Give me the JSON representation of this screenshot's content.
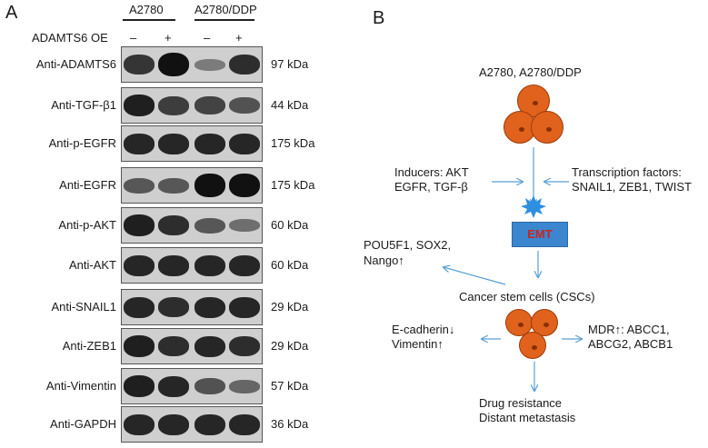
{
  "panel_a": {
    "letter": "A",
    "cell_lines": [
      "A2780",
      "A2780/DDP"
    ],
    "treatment_label": "ADAMTS6 OE",
    "lane_signs": [
      "–",
      "+",
      "–",
      "+"
    ],
    "blots": [
      {
        "label": "Anti-ADAMTS6",
        "kda": "97 kDa",
        "intensity": [
          0.75,
          1.0,
          0.25,
          0.8
        ]
      },
      {
        "label": "Anti-TGF-β1",
        "kda": "44 kDa",
        "intensity": [
          0.9,
          0.7,
          0.65,
          0.55
        ]
      },
      {
        "label": "Anti-p-EGFR",
        "kda": "175 kDa",
        "intensity": [
          0.85,
          0.85,
          0.85,
          0.85
        ]
      },
      {
        "label": "Anti-EGFR",
        "kda": "175 kDa",
        "intensity": [
          0.5,
          0.5,
          1.0,
          1.0
        ]
      },
      {
        "label": "Anti-p-AKT",
        "kda": "60 kDa",
        "intensity": [
          0.9,
          0.8,
          0.5,
          0.35
        ]
      },
      {
        "label": "Anti-AKT",
        "kda": "60 kDa",
        "intensity": [
          0.85,
          0.85,
          0.85,
          0.85
        ]
      },
      {
        "label": "Anti-SNAIL1",
        "kda": "29 kDa",
        "intensity": [
          0.85,
          0.8,
          0.85,
          0.85
        ]
      },
      {
        "label": "Anti-ZEB1",
        "kda": "29 kDa",
        "intensity": [
          0.9,
          0.8,
          0.85,
          0.8
        ]
      },
      {
        "label": "Anti-Vimentin",
        "kda": "57 kDa",
        "intensity": [
          0.9,
          0.85,
          0.55,
          0.4
        ]
      },
      {
        "label": "Anti-GAPDH",
        "kda": "36 kDa",
        "intensity": [
          0.85,
          0.85,
          0.85,
          0.85
        ]
      }
    ]
  },
  "panel_b": {
    "letter": "B",
    "top_cells": "A2780, A2780/DDP",
    "inducers": [
      "Inducers: AKT",
      "EGFR, TGF-β"
    ],
    "transcription": [
      "Transcription factors:",
      "SNAIL1, ZEB1, TWIST"
    ],
    "emt": "EMT",
    "stem_markers": [
      "POU5F1, SOX2,",
      "Nango↑"
    ],
    "cscs": "Cancer stem cells (CSCs)",
    "cadherin": [
      "E-cadherin↓",
      "Vimentin↑"
    ],
    "mdr": [
      "MDR↑: ABCC1,",
      "ABCG2, ABCB1"
    ],
    "outcome": [
      "Drug resistance",
      "Distant metastasis"
    ],
    "colors": {
      "cell": "#e0621c",
      "emt_box": "#3b86cf",
      "emt_text": "#c8261e",
      "arrow": "#5a9fd4",
      "starburst": "#2e8fe0"
    }
  }
}
